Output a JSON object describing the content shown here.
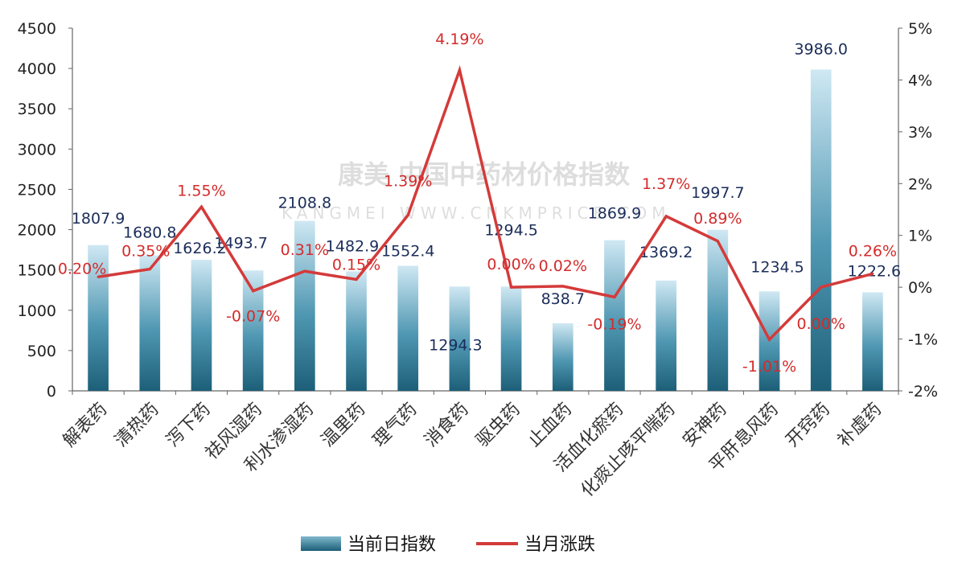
{
  "chart_data": {
    "type": "bar",
    "categories": [
      "解表药",
      "清热药",
      "泻下药",
      "祛风湿药",
      "利水渗湿药",
      "温里药",
      "理气药",
      "消食药",
      "驱虫药",
      "止血药",
      "活血化瘀药",
      "化痰止咳平喘药",
      "安神药",
      "平肝息风药",
      "开窍药",
      "补虚药"
    ],
    "series": [
      {
        "name": "当前日指数",
        "type": "bar",
        "axis": "left",
        "values": [
          1807.9,
          1680.8,
          1626.2,
          1493.7,
          2108.8,
          1482.9,
          1552.4,
          1294.3,
          1294.5,
          838.7,
          1869.9,
          1369.2,
          1997.7,
          1234.5,
          3986.0,
          1222.6
        ],
        "labels": [
          "1807.9",
          "1680.8",
          "1626.2",
          "1493.7",
          "2108.8",
          "1482.9",
          "1552.4",
          "1294.3",
          "1294.5",
          "838.7",
          "1869.9",
          "1369.2",
          "1997.7",
          "1234.5",
          "3986.0",
          "1222.6"
        ]
      },
      {
        "name": "当月涨跌",
        "type": "line",
        "axis": "right",
        "values": [
          0.2,
          0.35,
          1.55,
          -0.07,
          0.31,
          0.15,
          1.39,
          4.19,
          0.0,
          0.02,
          -0.19,
          1.37,
          0.89,
          -1.01,
          0.0,
          0.26
        ],
        "labels": [
          "0.20%",
          "0.35%",
          "1.55%",
          "-0.07%",
          "0.31%",
          "0.15%",
          "1.39%",
          "4.19%",
          "0.00%",
          "0.02%",
          "-0.19%",
          "1.37%",
          "0.89%",
          "-1.01%",
          "0.00%",
          "0.26%"
        ]
      }
    ],
    "y_left": {
      "min": 0,
      "max": 4500,
      "ticks": [
        "0",
        "500",
        "1000",
        "1500",
        "2000",
        "2500",
        "3000",
        "3500",
        "4000",
        "4500"
      ]
    },
    "y_right": {
      "min": -2,
      "max": 5,
      "ticks": [
        "-2%",
        "-1%",
        "0%",
        "1%",
        "2%",
        "3%",
        "4%",
        "5%"
      ]
    },
    "grid": false,
    "legend_position": "bottom",
    "watermark": "康美 中国中药材价格指数 KANGMEI WWW.CNKMPRICE.COM",
    "colors": {
      "bar_dark": "#1d5f78",
      "bar_light": "#c9e6f1",
      "line": "#d43a3a",
      "pct_label": "#d42b2b",
      "bar_label": "#1b2d5a"
    }
  }
}
